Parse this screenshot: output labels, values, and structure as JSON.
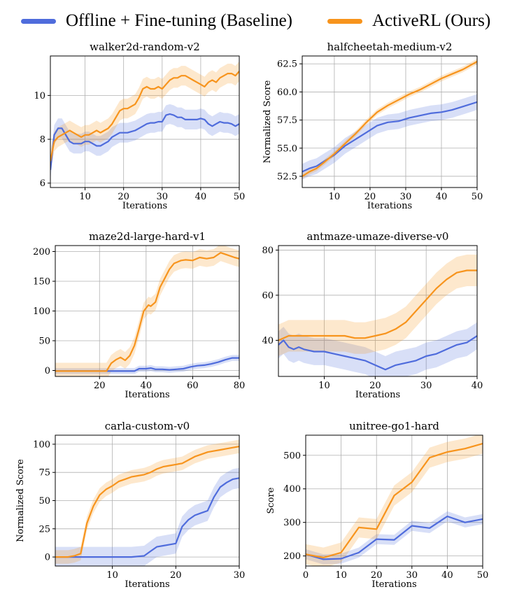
{
  "legend": {
    "baseline_label": "Offline + Fine-tuning (Baseline)",
    "ours_label": "ActiveRL (Ours)",
    "baseline_color": "#4f6cdc",
    "ours_color": "#f7941d"
  },
  "chart_data": [
    {
      "type": "line",
      "title": "walker2d-random-v2",
      "xlabel": "Iterations",
      "ylabel": "",
      "xlim": [
        1,
        50
      ],
      "ylim": [
        5.8,
        11.8
      ],
      "xticks": [
        10,
        20,
        30,
        40,
        50
      ],
      "yticks": [
        6,
        8,
        10
      ],
      "series": [
        {
          "name": "Offline + Fine-tuning (Baseline)",
          "x": [
            1,
            2,
            3,
            4,
            5,
            6,
            7,
            8,
            9,
            10,
            11,
            12,
            13,
            14,
            15,
            16,
            17,
            18,
            19,
            20,
            21,
            22,
            23,
            24,
            25,
            26,
            27,
            28,
            29,
            30,
            31,
            32,
            33,
            34,
            35,
            36,
            37,
            38,
            39,
            40,
            41,
            42,
            43,
            44,
            45,
            46,
            47,
            48,
            49,
            50
          ],
          "y": [
            6.6,
            8.2,
            8.5,
            8.5,
            8.2,
            7.9,
            7.8,
            7.8,
            7.8,
            7.9,
            7.9,
            7.8,
            7.7,
            7.7,
            7.8,
            7.9,
            8.1,
            8.2,
            8.3,
            8.3,
            8.3,
            8.35,
            8.4,
            8.5,
            8.6,
            8.7,
            8.75,
            8.75,
            8.8,
            8.8,
            9.1,
            9.15,
            9.1,
            9.0,
            9.0,
            8.9,
            8.9,
            8.9,
            8.9,
            8.95,
            8.9,
            8.7,
            8.6,
            8.7,
            8.8,
            8.75,
            8.75,
            8.7,
            8.6,
            8.7
          ],
          "band": 0.45
        },
        {
          "name": "ActiveRL (Ours)",
          "x": [
            1,
            2,
            3,
            4,
            5,
            6,
            7,
            8,
            9,
            10,
            11,
            12,
            13,
            14,
            15,
            16,
            17,
            18,
            19,
            20,
            21,
            22,
            23,
            24,
            25,
            26,
            27,
            28,
            29,
            30,
            31,
            32,
            33,
            34,
            35,
            36,
            37,
            38,
            39,
            40,
            41,
            42,
            43,
            44,
            45,
            46,
            47,
            48,
            49,
            50
          ],
          "y": [
            7.0,
            7.9,
            8.1,
            8.2,
            8.3,
            8.4,
            8.3,
            8.2,
            8.1,
            8.2,
            8.2,
            8.3,
            8.4,
            8.3,
            8.4,
            8.5,
            8.7,
            9.0,
            9.3,
            9.4,
            9.4,
            9.5,
            9.6,
            9.9,
            10.3,
            10.4,
            10.3,
            10.3,
            10.4,
            10.3,
            10.5,
            10.7,
            10.8,
            10.8,
            10.9,
            10.9,
            10.8,
            10.7,
            10.6,
            10.5,
            10.4,
            10.6,
            10.7,
            10.6,
            10.8,
            10.9,
            11.0,
            11.0,
            10.9,
            11.1
          ],
          "band": 0.45
        }
      ]
    },
    {
      "type": "line",
      "title": "halfcheetah-medium-v2",
      "xlabel": "Iterations",
      "ylabel": "Normalized Score",
      "xlim": [
        1,
        50
      ],
      "ylim": [
        51.5,
        63.2
      ],
      "xticks": [
        10,
        20,
        30,
        40,
        50
      ],
      "yticks": [
        52.5,
        55.0,
        57.5,
        60.0,
        62.5
      ],
      "series": [
        {
          "name": "Offline + Fine-tuning (Baseline)",
          "x": [
            1,
            3,
            5,
            7,
            10,
            13,
            16,
            19,
            22,
            25,
            28,
            31,
            34,
            37,
            40,
            43,
            46,
            50
          ],
          "y": [
            52.9,
            53.2,
            53.4,
            53.8,
            54.4,
            55.2,
            55.8,
            56.4,
            57.0,
            57.3,
            57.4,
            57.7,
            57.9,
            58.1,
            58.2,
            58.4,
            58.7,
            59.1
          ],
          "band": 0.7
        },
        {
          "name": "ActiveRL (Ours)",
          "x": [
            1,
            3,
            5,
            7,
            10,
            13,
            16,
            19,
            22,
            25,
            28,
            31,
            34,
            37,
            40,
            43,
            46,
            50
          ],
          "y": [
            52.5,
            52.9,
            53.2,
            53.7,
            54.5,
            55.4,
            56.3,
            57.3,
            58.2,
            58.8,
            59.3,
            59.8,
            60.2,
            60.7,
            61.2,
            61.6,
            62.0,
            62.7
          ],
          "band": 0.25
        }
      ]
    },
    {
      "type": "line",
      "title": "maze2d-large-hard-v1",
      "xlabel": "Iterations",
      "ylabel": "",
      "xlim": [
        1,
        80
      ],
      "ylim": [
        -10,
        210
      ],
      "xticks": [
        20,
        40,
        60,
        80
      ],
      "yticks": [
        0,
        50,
        100,
        150,
        200
      ],
      "series": [
        {
          "name": "Offline + Fine-tuning (Baseline)",
          "x": [
            1,
            5,
            10,
            15,
            20,
            25,
            30,
            35,
            37,
            40,
            42,
            44,
            47,
            50,
            53,
            56,
            59,
            62,
            65,
            68,
            71,
            74,
            77,
            80
          ],
          "y": [
            -1,
            -1,
            -1,
            -1,
            -1,
            -1,
            -1,
            -1,
            3,
            3,
            4,
            2,
            2,
            1,
            2,
            3,
            6,
            8,
            9,
            11,
            14,
            18,
            21,
            21
          ],
          "band": 5
        },
        {
          "name": "ActiveRL (Ours)",
          "x": [
            1,
            5,
            10,
            15,
            20,
            23,
            25,
            27,
            29,
            31,
            33,
            35,
            37,
            39,
            41,
            42,
            44,
            46,
            48,
            50,
            52,
            55,
            57,
            60,
            63,
            66,
            69,
            72,
            75,
            78,
            80
          ],
          "y": [
            -1,
            -1,
            -1,
            -1,
            -1,
            -1,
            12,
            18,
            22,
            17,
            25,
            42,
            70,
            100,
            110,
            108,
            115,
            140,
            155,
            170,
            180,
            185,
            186,
            185,
            190,
            188,
            190,
            198,
            194,
            190,
            188
          ],
          "band": 14
        }
      ]
    },
    {
      "type": "line",
      "title": "antmaze-umaze-diverse-v0",
      "xlabel": "Iterations",
      "ylabel": "",
      "xlim": [
        1,
        40
      ],
      "ylim": [
        24,
        82
      ],
      "xticks": [
        10,
        20,
        30,
        40
      ],
      "yticks": [
        40,
        60,
        80
      ],
      "series": [
        {
          "name": "Offline + Fine-tuning (Baseline)",
          "x": [
            1,
            2,
            3,
            4,
            5,
            6,
            8,
            10,
            12,
            14,
            16,
            18,
            20,
            22,
            24,
            26,
            28,
            30,
            32,
            34,
            36,
            38,
            40
          ],
          "y": [
            38,
            40,
            37,
            36,
            37,
            36,
            35,
            35,
            34,
            33,
            32,
            31,
            29,
            27,
            29,
            30,
            31,
            33,
            34,
            36,
            38,
            39,
            42
          ],
          "band": 6
        },
        {
          "name": "ActiveRL (Ours)",
          "x": [
            1,
            2,
            3,
            4,
            5,
            6,
            8,
            10,
            12,
            14,
            16,
            18,
            20,
            22,
            24,
            26,
            28,
            30,
            32,
            34,
            36,
            38,
            40
          ],
          "y": [
            40,
            41,
            42,
            42,
            42,
            42,
            42,
            42,
            42,
            42,
            41,
            41,
            42,
            43,
            45,
            48,
            53,
            58,
            63,
            67,
            70,
            71,
            71
          ],
          "band": 7
        }
      ]
    },
    {
      "type": "line",
      "title": "carla-custom-v0",
      "xlabel": "Iterations",
      "ylabel": "Normalized Score",
      "xlim": [
        1,
        30
      ],
      "ylim": [
        -8,
        108
      ],
      "xticks": [
        10,
        20,
        30
      ],
      "yticks": [
        0,
        25,
        50,
        75,
        100
      ],
      "series": [
        {
          "name": "Offline + Fine-tuning (Baseline)",
          "x": [
            1,
            3,
            5,
            7,
            9,
            11,
            13,
            15,
            16,
            17,
            18,
            19,
            20,
            21,
            22,
            23,
            24,
            25,
            26,
            27,
            28,
            29,
            30
          ],
          "y": [
            0,
            0,
            0,
            0,
            0,
            0,
            0,
            1,
            5,
            9,
            10,
            11,
            12,
            27,
            33,
            37,
            39,
            41,
            53,
            62,
            66,
            69,
            70
          ],
          "band": 9
        },
        {
          "name": "ActiveRL (Ours)",
          "x": [
            1,
            2,
            3,
            4,
            5,
            6,
            7,
            8,
            9,
            10,
            11,
            12,
            13,
            14,
            15,
            16,
            17,
            18,
            19,
            20,
            21,
            22,
            23,
            24,
            25,
            26,
            27,
            28,
            29,
            30
          ],
          "y": [
            0,
            0,
            0,
            1,
            3,
            30,
            45,
            55,
            60,
            63,
            67,
            69,
            71,
            72,
            73,
            75,
            78,
            80,
            81,
            82,
            83,
            86,
            89,
            91,
            93,
            94,
            95,
            96,
            97,
            98
          ],
          "band": 6
        }
      ]
    },
    {
      "type": "line",
      "title": "unitree-go1-hard",
      "xlabel": "Iterations",
      "ylabel": "Score",
      "xlim": [
        0,
        50
      ],
      "ylim": [
        170,
        560
      ],
      "xticks": [
        0,
        10,
        20,
        30,
        40,
        50
      ],
      "yticks": [
        200,
        300,
        400,
        500
      ],
      "series": [
        {
          "name": "Offline + Fine-tuning (Baseline)",
          "x": [
            0,
            5,
            10,
            15,
            20,
            25,
            30,
            35,
            40,
            45,
            50
          ],
          "y": [
            205,
            190,
            192,
            210,
            250,
            248,
            290,
            283,
            318,
            300,
            310
          ],
          "band": 15
        },
        {
          "name": "ActiveRL (Ours)",
          "x": [
            0,
            5,
            10,
            15,
            20,
            25,
            30,
            35,
            40,
            45,
            50
          ],
          "y": [
            205,
            195,
            210,
            285,
            280,
            380,
            420,
            493,
            510,
            520,
            535
          ],
          "band": 30
        }
      ]
    }
  ]
}
